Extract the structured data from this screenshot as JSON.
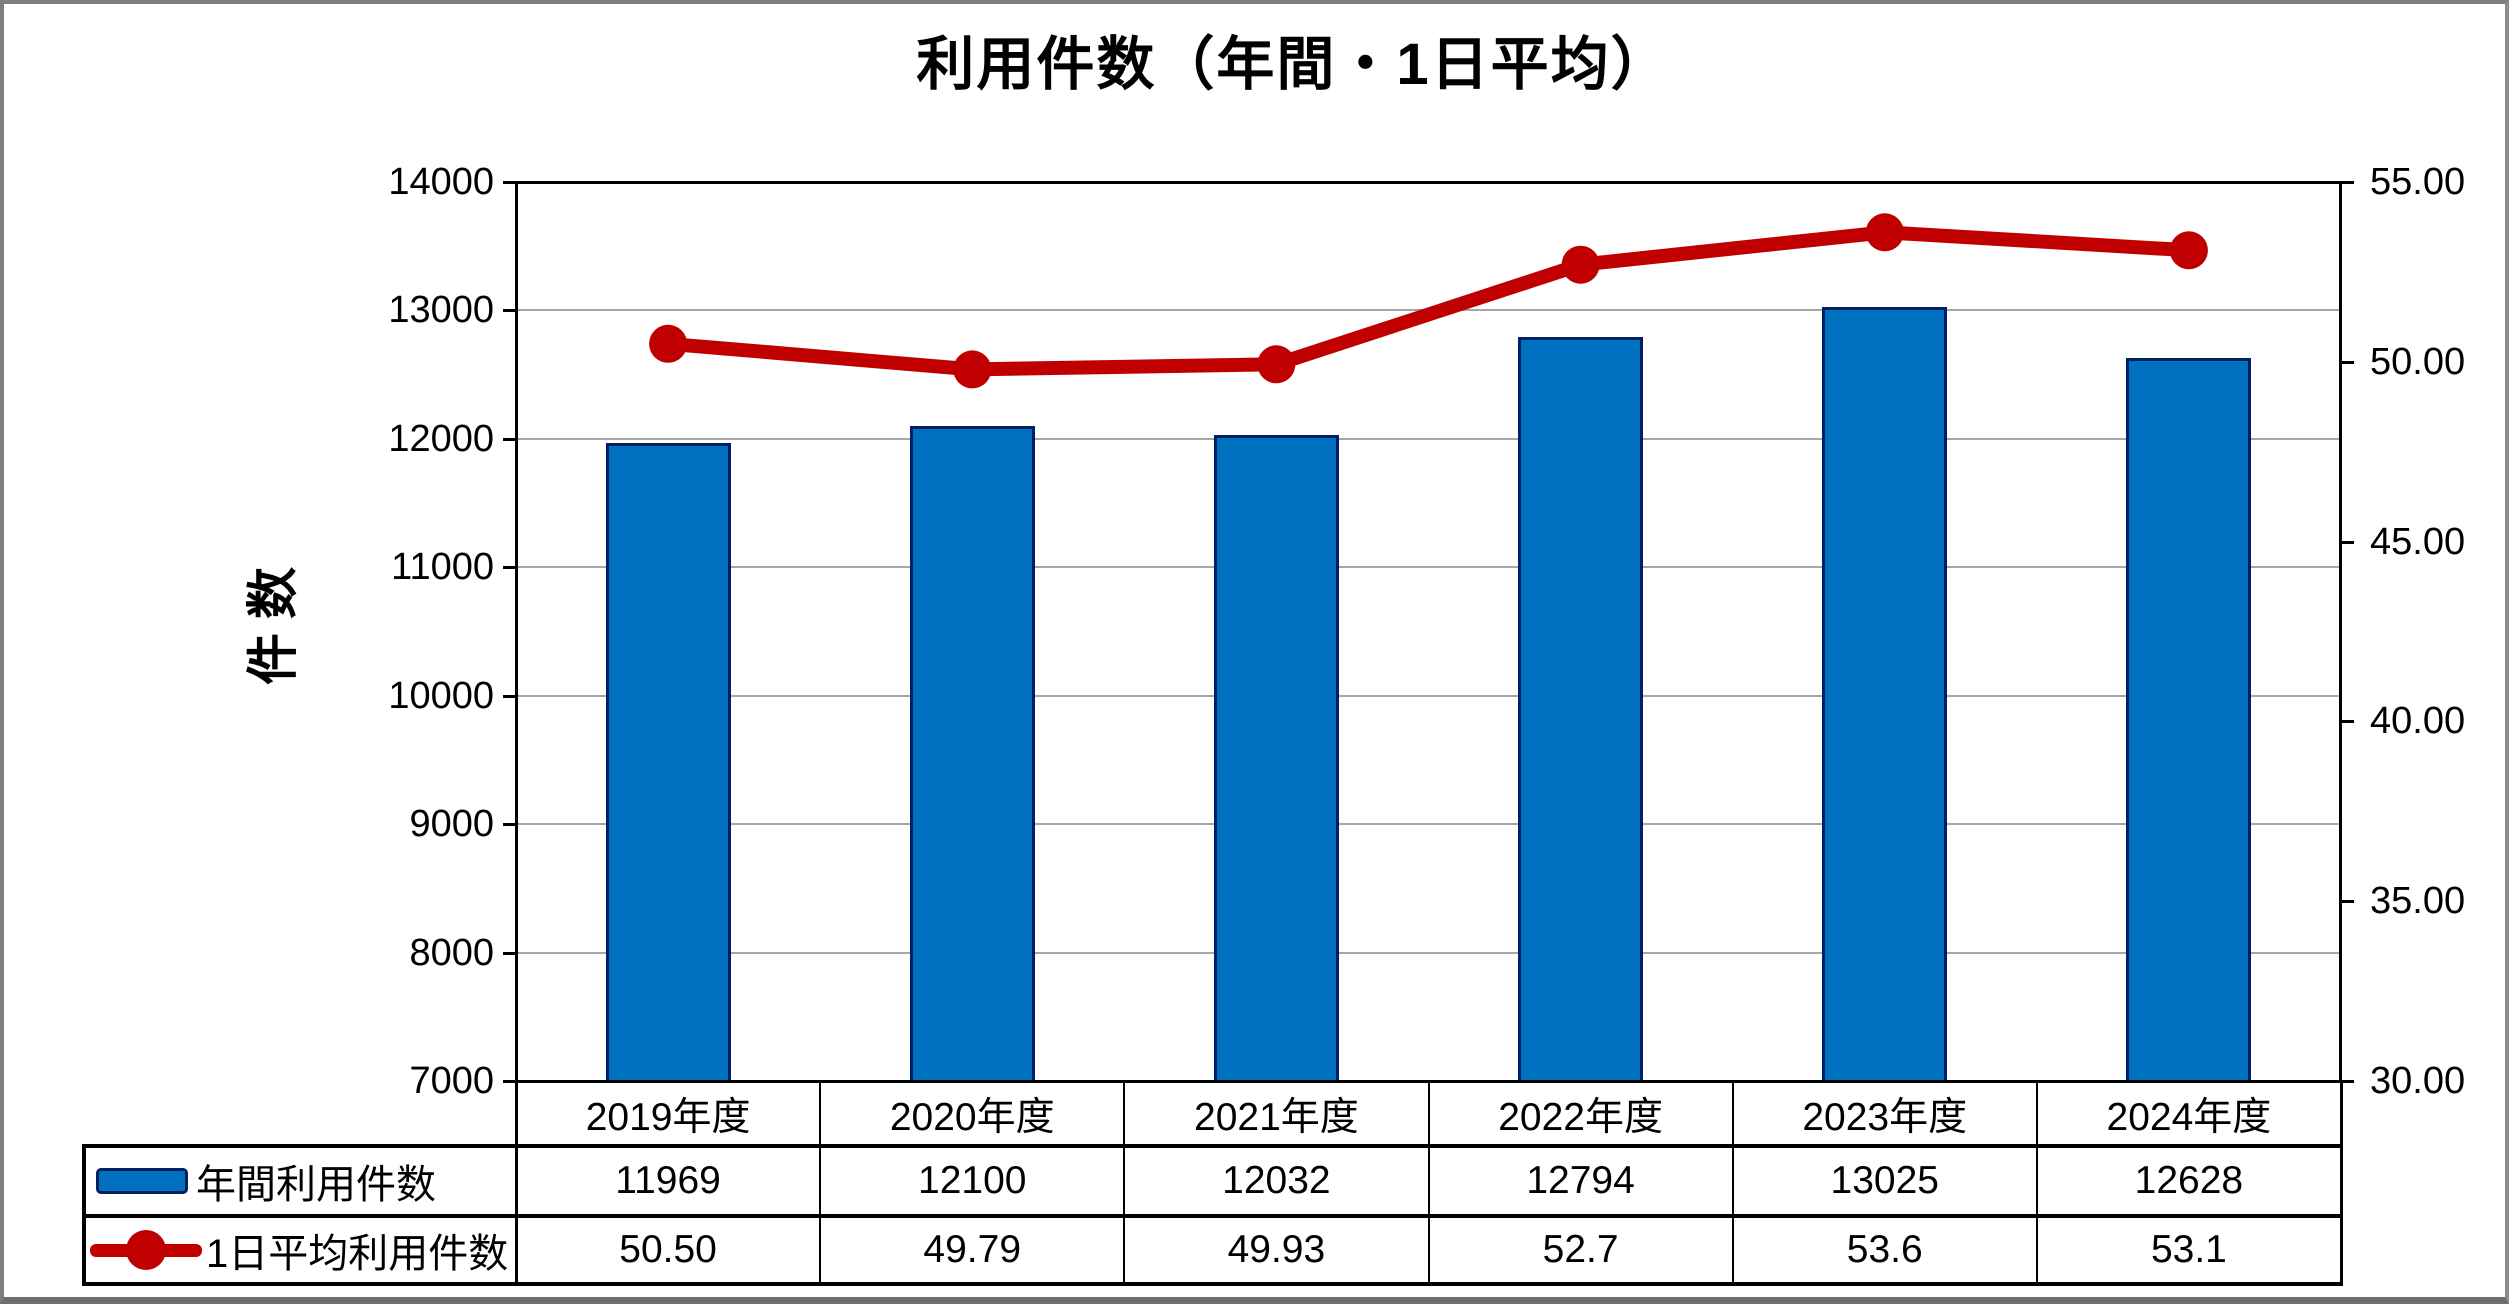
{
  "window": {
    "background": "#FFFFFF",
    "border_color": "#7F7F7F"
  },
  "chart_data": {
    "type": "combo",
    "title": "利用件数（年間・1日平均）",
    "categories": [
      "2019年度",
      "2020年度",
      "2021年度",
      "2022年度",
      "2023年度",
      "2024年度"
    ],
    "series": [
      {
        "name": "年間利用件数",
        "type": "bar",
        "axis": "left",
        "color": "#0070C0",
        "border_color": "#002060",
        "values": [
          11969,
          12100,
          12032,
          12794,
          13025,
          12628
        ],
        "value_labels": [
          "11969",
          "12100",
          "12032",
          "12794",
          "13025",
          "12628"
        ]
      },
      {
        "name": "1日平均利用件数",
        "type": "line",
        "axis": "right",
        "color": "#C00000",
        "marker": "circle",
        "values": [
          50.5,
          49.79,
          49.93,
          52.7,
          53.6,
          53.1
        ],
        "value_labels": [
          "50.50",
          "49.79",
          "49.93",
          "52.7",
          "53.6",
          "53.1"
        ]
      }
    ],
    "left_axis": {
      "title": "件数",
      "min": 7000,
      "max": 14000,
      "step": 1000,
      "tick_labels": [
        "14000",
        "13000",
        "12000",
        "11000",
        "10000",
        "9000",
        "8000",
        "7000"
      ]
    },
    "right_axis": {
      "title": "",
      "min": 30,
      "max": 55,
      "step": 5,
      "tick_labels": [
        "55.00",
        "50.00",
        "45.00",
        "40.00",
        "35.00",
        "30.00"
      ]
    },
    "grid": true,
    "gridline_color": "#A6A6A6",
    "legend_position": "table-left"
  }
}
